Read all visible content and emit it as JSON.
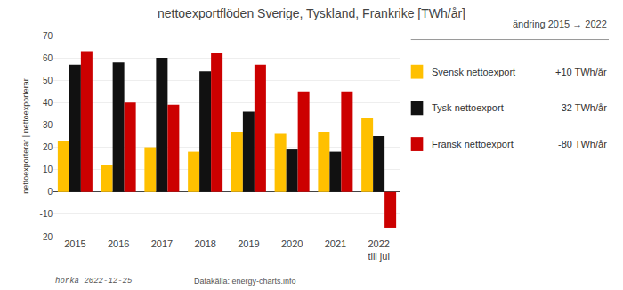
{
  "chart_data": {
    "type": "bar",
    "title": "nettoexportflöden Sverige, Tyskland, Frankrike [TWh/år]",
    "categories": [
      "2015",
      "2016",
      "2017",
      "2018",
      "2019",
      "2020",
      "2021",
      "2022\ntill jul"
    ],
    "series": [
      {
        "name": "Svensk nettoexport",
        "color": "#FFC000",
        "values": [
          23,
          12,
          20,
          18,
          27,
          26,
          27,
          33
        ]
      },
      {
        "name": "Tysk nettoexport",
        "color": "#111111",
        "values": [
          57,
          58,
          60,
          54,
          36,
          19,
          18,
          25
        ]
      },
      {
        "name": "Fransk nettoexport",
        "color": "#CC0000",
        "values": [
          63,
          40,
          39,
          62,
          57,
          45,
          45,
          -16
        ]
      }
    ],
    "ylabel": "nettoexporterar | nettoexporterar",
    "ylim": [
      -20,
      70
    ],
    "yticks": [
      -20,
      -10,
      0,
      10,
      20,
      30,
      40,
      50,
      60,
      70
    ],
    "grid": true,
    "legend": "right",
    "annotations": [
      "ändring 2015 → 2022",
      "+10 TWh/år",
      "-32 TWh/år",
      "-80 TWh/år",
      "horka 2022-12-25",
      "Datakälla: energy-charts.info"
    ]
  }
}
